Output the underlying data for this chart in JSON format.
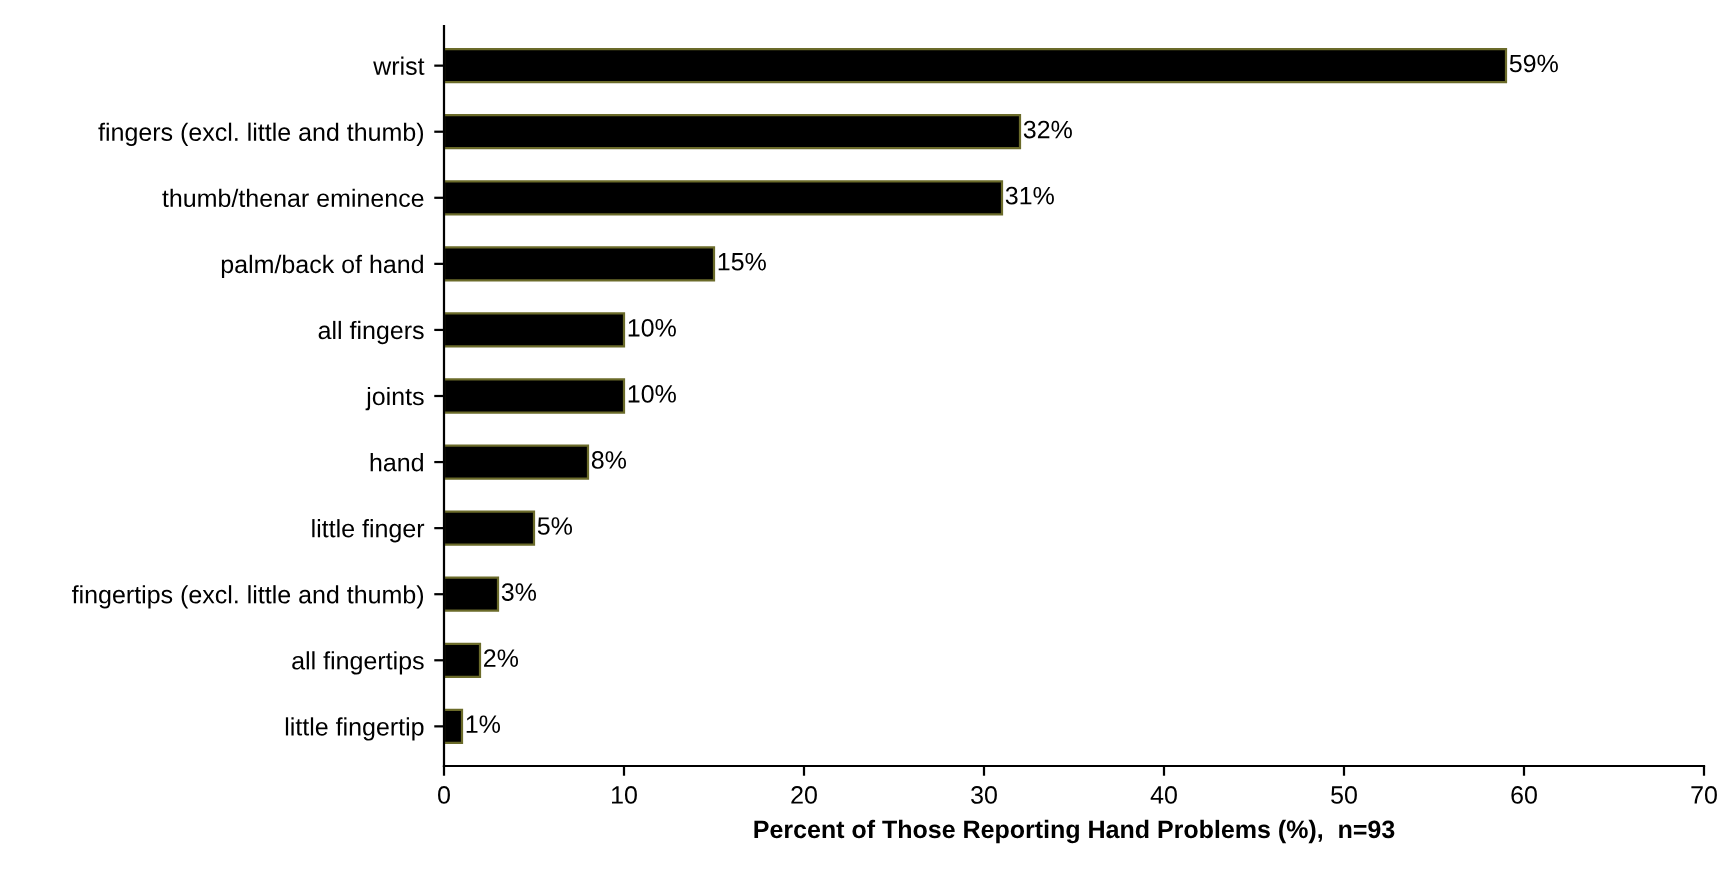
{
  "chart_data": {
    "type": "bar",
    "orientation": "horizontal",
    "xlabel": "Percent of Those Reporting Hand Problems (%),  n=93",
    "categories": [
      "wrist",
      "fingers (excl. little and thumb)",
      "thumb/thenar eminence",
      "palm/back of hand",
      "all fingers",
      "joints",
      "hand",
      "little finger",
      "fingertips (excl. little and thumb)",
      "all fingertips",
      "little fingertip"
    ],
    "values": [
      59,
      32,
      31,
      15,
      10,
      10,
      8,
      5,
      3,
      2,
      1
    ],
    "value_labels": [
      "59%",
      "32%",
      "31%",
      "15%",
      "10%",
      "10%",
      "8%",
      "5%",
      "3%",
      "2%",
      "1%"
    ],
    "color": "#000000",
    "xlim": [
      0,
      70
    ],
    "xticks": [
      0,
      10,
      20,
      30,
      40,
      50,
      60,
      70
    ],
    "grid": false
  }
}
